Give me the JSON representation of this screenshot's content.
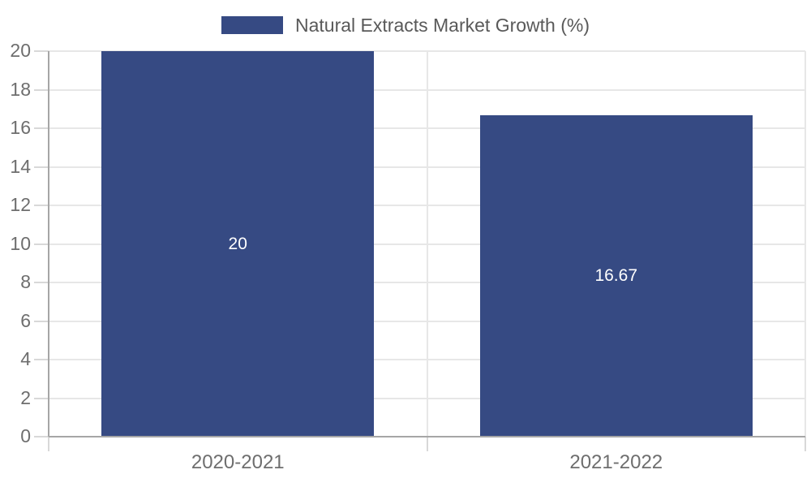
{
  "chart_data": {
    "type": "bar",
    "title": "",
    "xlabel": "",
    "ylabel": "",
    "categories": [
      "2020-2021",
      "2021-2022"
    ],
    "values": [
      20,
      16.67
    ],
    "value_labels": [
      "20",
      "16.67"
    ],
    "legend": [
      "Natural Extracts Market Growth (%)"
    ],
    "legend_position": "top-center",
    "ylim": [
      0,
      20
    ],
    "y_ticks": [
      0,
      2,
      4,
      6,
      8,
      10,
      12,
      14,
      16,
      18,
      20
    ],
    "grid": true,
    "colors": {
      "bar": "#364a83",
      "data_label": "#ffffff",
      "axis_text": "#6e6e6e",
      "legend_text": "#595959",
      "gridline": "#e7e7e7",
      "tick": "#d8d8d8",
      "axis_line": "#a6a6a6",
      "background": "#ffffff"
    }
  }
}
